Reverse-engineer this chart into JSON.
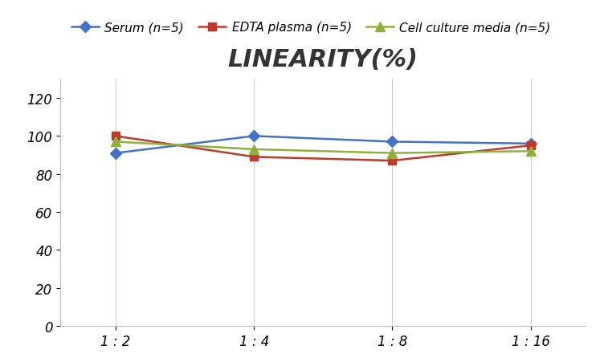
{
  "title": "LINEARITY(%)",
  "x_labels": [
    "1 : 2",
    "1 : 4",
    "1 : 8",
    "1 : 16"
  ],
  "x_positions": [
    0,
    1,
    2,
    3
  ],
  "series": [
    {
      "label": "Serum (n=5)",
      "values": [
        91,
        100,
        97,
        96
      ],
      "color": "#4472C4",
      "marker": "D",
      "marker_size": 7,
      "linewidth": 1.8
    },
    {
      "label": "EDTA plasma (n=5)",
      "values": [
        100,
        89,
        87,
        95
      ],
      "color": "#C0392B",
      "marker": "s",
      "marker_size": 7,
      "linewidth": 1.8
    },
    {
      "label": "Cell culture media (n=5)",
      "values": [
        97,
        93,
        91,
        92
      ],
      "color": "#8DB13C",
      "marker": "^",
      "marker_size": 8,
      "linewidth": 1.8
    }
  ],
  "ylim": [
    0,
    130
  ],
  "yticks": [
    0,
    20,
    40,
    60,
    80,
    100,
    120
  ],
  "grid_color": "#CCCCCC",
  "background_color": "#FFFFFF",
  "title_fontsize": 22,
  "legend_fontsize": 11,
  "tick_fontsize": 12
}
